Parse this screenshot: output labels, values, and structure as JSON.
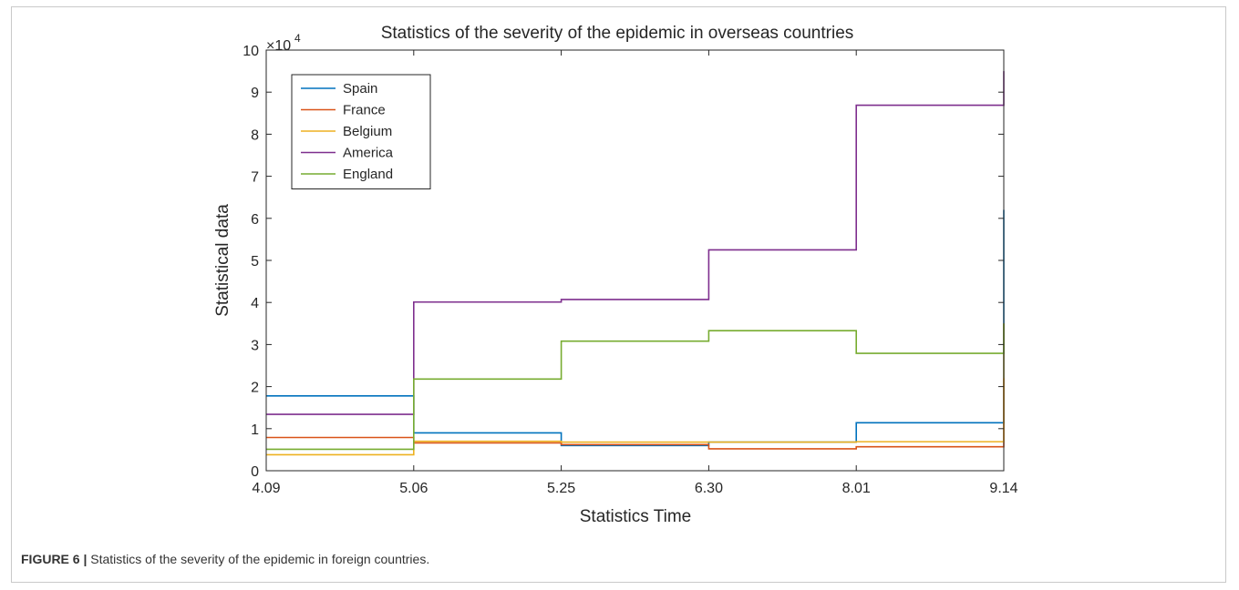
{
  "caption": {
    "label": "FIGURE 6 |",
    "text": " Statistics of the severity of the epidemic in foreign countries."
  },
  "chart_data": {
    "type": "line",
    "step": true,
    "title": "Statistics of the severity of the epidemic in overseas countries",
    "xlabel": "Statistics Time",
    "ylabel": "Statistical data",
    "y_exponent_label": "×10",
    "y_exponent_power": "4",
    "categories": [
      "4.09",
      "5.06",
      "5.25",
      "6.30",
      "8.01",
      "9.14"
    ],
    "y_ticks": [
      "0",
      "1",
      "2",
      "3",
      "4",
      "5",
      "6",
      "7",
      "8",
      "9",
      "10"
    ],
    "ylim": [
      0,
      100000
    ],
    "legend_position": "top-left",
    "grid": false,
    "series": [
      {
        "name": "Spain",
        "color": "#0072BD",
        "values": [
          17800,
          9000,
          6000,
          6800,
          11400,
          62000
        ]
      },
      {
        "name": "France",
        "color": "#D95319",
        "values": [
          7900,
          6600,
          6200,
          5200,
          5700,
          22000
        ]
      },
      {
        "name": "Belgium",
        "color": "#EDB120",
        "values": [
          3800,
          7000,
          6800,
          6800,
          6900,
          35000
        ]
      },
      {
        "name": "America",
        "color": "#7E2F8E",
        "values": [
          13400,
          40100,
          40700,
          52500,
          86900,
          95000
        ]
      },
      {
        "name": "England",
        "color": "#77AC30",
        "values": [
          5100,
          21800,
          30800,
          33300,
          27900,
          35000
        ]
      }
    ]
  }
}
